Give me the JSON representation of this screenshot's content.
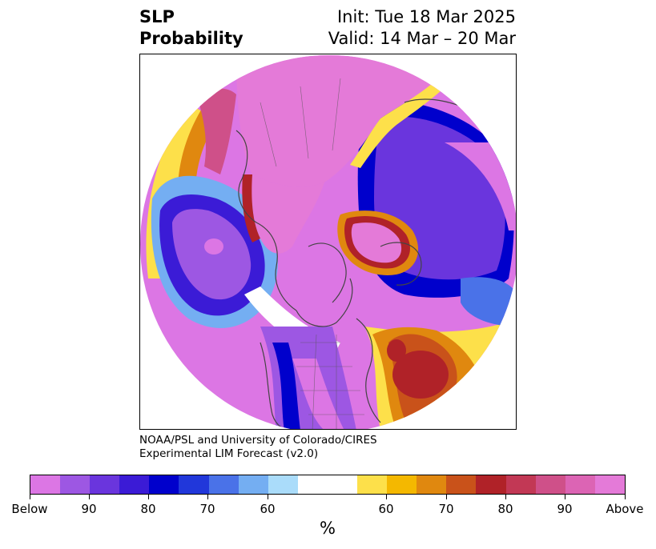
{
  "header": {
    "title_line1": "SLP",
    "title_line2": "Probability",
    "init": "Init: Tue 18 Mar 2025",
    "valid": "Valid: 14 Mar – 20 Mar"
  },
  "credit": {
    "line1": "NOAA/PSL and University of Colorado/CIRES",
    "line2": "Experimental LIM Forecast (v2.0)"
  },
  "colorbar": {
    "unit": "%",
    "colors": [
      "#dc76e4",
      "#9d57e3",
      "#6a35dd",
      "#3b1bd6",
      "#0000cc",
      "#2137da",
      "#4a72e8",
      "#74aef2",
      "#aadcfa",
      "#ffffff",
      "#ffffff",
      "#fde04a",
      "#f4b800",
      "#e0880f",
      "#c9521a",
      "#b02228",
      "#c23855",
      "#cf5089",
      "#dc64b4",
      "#e47ad8"
    ],
    "tick_labels": [
      "Below",
      "90",
      "80",
      "70",
      "60",
      "60",
      "70",
      "80",
      "90",
      "Above"
    ]
  },
  "map_colors": {
    "above_strong": "#e47ad8",
    "below_strong": "#dc76e4",
    "purple": "#9d57e3",
    "blue": "#0000cc",
    "red": "#b02228",
    "orange": "#e0880f",
    "yellow": "#fde04a",
    "coast": "#444444"
  }
}
